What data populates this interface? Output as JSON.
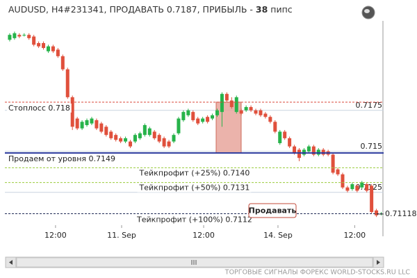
{
  "chart_data": {
    "type": "candlestick",
    "title": "AUDUSD, H4#231341, ПРОДАВАТЬ 0.7187, ПРИБЫЛЬ -",
    "profit": 38,
    "profit_unit": "пипс",
    "open": [
      0.7218,
      0.7219,
      0.7221,
      0.7221,
      0.7221,
      0.722,
      0.7216,
      0.7216,
      0.7211,
      0.7214,
      0.7212,
      0.7208,
      0.72,
      0.7183,
      0.717,
      0.7164,
      0.7166,
      0.7167,
      0.7169,
      0.7167,
      0.7165,
      0.7162,
      0.716,
      0.7158,
      0.7156,
      0.7156,
      0.7156,
      0.7158,
      0.716,
      0.716,
      0.7162,
      0.716,
      0.7158,
      0.7156,
      0.7156,
      0.7161,
      0.7169,
      0.7172,
      0.7174,
      0.717,
      0.7168,
      0.7171,
      0.717,
      0.7172,
      0.7174,
      0.7185,
      0.7181,
      0.7174,
      0.7175,
      0.7175,
      0.7177,
      0.7175,
      0.7175,
      0.7173,
      0.7171,
      0.7168,
      0.7155,
      0.7162,
      0.7158,
      0.7153,
      0.7151,
      0.7148,
      0.715,
      0.7153,
      0.7148,
      0.7151,
      0.715,
      0.7148,
      0.7139,
      0.7136,
      0.7128,
      0.7127,
      0.7129,
      0.7128,
      0.713,
      0.7129,
      0.7114,
      0.7112
    ],
    "high": [
      0.7222,
      0.7223,
      0.7222,
      0.7222,
      0.7222,
      0.7221,
      0.7217,
      0.7217,
      0.7215,
      0.7215,
      0.7213,
      0.7209,
      0.7201,
      0.7184,
      0.7171,
      0.7169,
      0.717,
      0.7171,
      0.717,
      0.7168,
      0.7166,
      0.7163,
      0.7161,
      0.7159,
      0.7159,
      0.7157,
      0.7161,
      0.7162,
      0.7167,
      0.7165,
      0.7163,
      0.7161,
      0.7159,
      0.7157,
      0.7161,
      0.7171,
      0.7175,
      0.7176,
      0.7175,
      0.7171,
      0.7171,
      0.7172,
      0.7173,
      0.7176,
      0.7186,
      0.7186,
      0.7183,
      0.7184,
      0.7176,
      0.7178,
      0.7178,
      0.7176,
      0.7176,
      0.7174,
      0.7172,
      0.7169,
      0.7163,
      0.7163,
      0.7159,
      0.7154,
      0.7152,
      0.7152,
      0.7154,
      0.7154,
      0.7152,
      0.7152,
      0.7151,
      0.7149,
      0.714,
      0.7137,
      0.7129,
      0.7131,
      0.713,
      0.7132,
      0.7131,
      0.713,
      0.7115,
      0.7113
    ],
    "low": [
      0.7217,
      0.7218,
      0.7219,
      0.722,
      0.7218,
      0.7214,
      0.7213,
      0.7212,
      0.721,
      0.721,
      0.7207,
      0.7199,
      0.7182,
      0.7163,
      0.7163,
      0.7163,
      0.7165,
      0.7166,
      0.7163,
      0.7161,
      0.7159,
      0.7157,
      0.7156,
      0.7155,
      0.7155,
      0.7152,
      0.7155,
      0.7157,
      0.7159,
      0.7159,
      0.7157,
      0.7155,
      0.7152,
      0.7152,
      0.7155,
      0.716,
      0.7168,
      0.7171,
      0.7168,
      0.7166,
      0.7167,
      0.7167,
      0.7169,
      0.7171,
      0.7165,
      0.718,
      0.7176,
      0.7173,
      0.7172,
      0.7174,
      0.7174,
      0.7172,
      0.7171,
      0.717,
      0.7167,
      0.7161,
      0.7154,
      0.7157,
      0.7152,
      0.7148,
      0.7144,
      0.7147,
      0.7149,
      0.7147,
      0.7147,
      0.7147,
      0.7147,
      0.7136,
      0.7135,
      0.7127,
      0.7125,
      0.7126,
      0.7125,
      0.7127,
      0.7125,
      0.7112,
      0.711,
      0.7111
    ],
    "close": [
      0.7221,
      0.7222,
      0.722,
      0.7221,
      0.7219,
      0.7215,
      0.7214,
      0.7213,
      0.7214,
      0.7211,
      0.7208,
      0.72,
      0.7183,
      0.7165,
      0.7164,
      0.7168,
      0.7169,
      0.717,
      0.7164,
      0.7162,
      0.716,
      0.7158,
      0.7157,
      0.7156,
      0.7158,
      0.7153,
      0.716,
      0.7161,
      0.7166,
      0.7164,
      0.7158,
      0.7156,
      0.7153,
      0.7153,
      0.716,
      0.717,
      0.7174,
      0.7175,
      0.7169,
      0.7167,
      0.717,
      0.7168,
      0.7172,
      0.7175,
      0.7185,
      0.7181,
      0.7177,
      0.7183,
      0.7173,
      0.7177,
      0.7175,
      0.7173,
      0.7172,
      0.7171,
      0.7168,
      0.7162,
      0.7162,
      0.7158,
      0.7153,
      0.7149,
      0.7146,
      0.7151,
      0.7153,
      0.7148,
      0.7151,
      0.7148,
      0.7148,
      0.7137,
      0.7136,
      0.7128,
      0.7126,
      0.713,
      0.7126,
      0.7131,
      0.7126,
      0.7113,
      0.7111,
      0.7112
    ],
    "up_color": "#27b34a",
    "down_color": "#e0503c",
    "xlim": [
      -1,
      77.5
    ],
    "xticks": [
      {
        "value": 9.5,
        "label": "12:00"
      },
      {
        "value": 23.2,
        "label": "11. Sep"
      },
      {
        "value": 40.2,
        "label": "12:00"
      },
      {
        "value": 55.6,
        "label": "14. Sep"
      },
      {
        "value": 71.5,
        "label": "12:00"
      }
    ],
    "ylim": [
      0.7105,
      0.7227
    ],
    "yticks": [
      0.7175,
      0.715,
      0.7125
    ],
    "grid": true,
    "levels": [
      {
        "label": "Стоплосс 0.718",
        "value": 0.718,
        "color": "#d9453a",
        "style": "dashed"
      },
      {
        "label": "Продаем от уровня 0.7149",
        "value": 0.7149,
        "color": "#2b3a9e",
        "style": "solid"
      },
      {
        "label": "Тейкпрофит (+25%) 0.7140",
        "value": 0.714,
        "color": "#9acb3c",
        "style": "dashed"
      },
      {
        "label": "Тейкпрофит (+50%) 0.7131",
        "value": 0.7131,
        "color": "#9acb3c",
        "style": "dashed"
      },
      {
        "label": "Тейкпрофит (+100%) 0.7112",
        "value": 0.7112,
        "color": "#1f2a55",
        "style": "dashed"
      }
    ],
    "current_price": 0.71118,
    "button": "Продавать",
    "footer": "ТОРГОВЫЕ СИГНАЛЫ ФОРЕКС WORLD-STOCKS.RU LLC"
  }
}
